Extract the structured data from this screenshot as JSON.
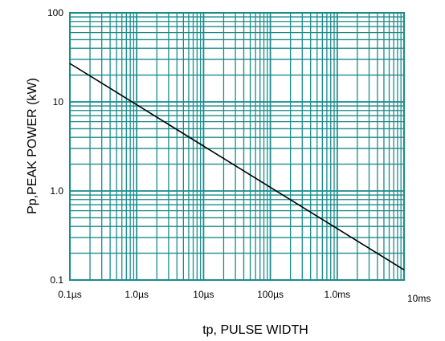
{
  "chart_data": {
    "type": "line",
    "xlabel": "tp, PULSE WIDTH",
    "ylabel": "Pp,PEAK POWER (kW)",
    "x_scale": "log",
    "y_scale": "log",
    "x_unit": "seconds",
    "xlim": [
      1e-07,
      0.01
    ],
    "ylim": [
      0.1,
      100
    ],
    "grid": true,
    "x_ticks": [
      {
        "value": 1e-07,
        "label": "0.1µs"
      },
      {
        "value": 1e-06,
        "label": "1.0µs"
      },
      {
        "value": 1e-05,
        "label": "10µs"
      },
      {
        "value": 0.0001,
        "label": "100µs"
      },
      {
        "value": 0.001,
        "label": "1.0ms"
      },
      {
        "value": 0.01,
        "label": "10ms"
      }
    ],
    "y_ticks": [
      {
        "value": 0.1,
        "label": "0.1"
      },
      {
        "value": 1,
        "label": "1.0"
      },
      {
        "value": 10,
        "label": "10"
      },
      {
        "value": 100,
        "label": "100"
      }
    ],
    "series": [
      {
        "x": [
          1e-07,
          0.01
        ],
        "y": [
          27,
          0.13
        ]
      }
    ],
    "colors": {
      "grid": "#1a8c8c",
      "line": "#000000",
      "frame": "#1a8c8c"
    }
  }
}
